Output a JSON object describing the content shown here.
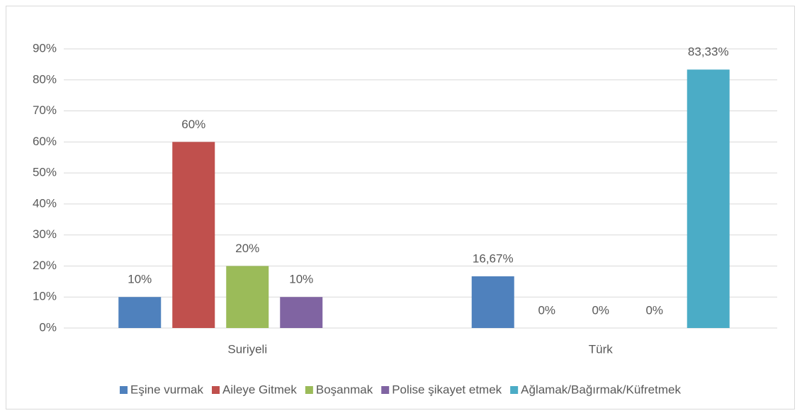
{
  "chart_data": {
    "type": "bar",
    "categories": [
      "Suriyeli",
      "Türk"
    ],
    "series": [
      {
        "name": "Eşine vurmak",
        "color": "#4f81bd",
        "values": [
          10,
          16.67
        ],
        "value_labels": [
          "10%",
          "16,67%"
        ]
      },
      {
        "name": "Aileye Gitmek",
        "color": "#c0504d",
        "values": [
          60,
          0
        ],
        "value_labels": [
          "60%",
          "0%"
        ]
      },
      {
        "name": "Boşanmak",
        "color": "#9bbb59",
        "values": [
          20,
          0
        ],
        "value_labels": [
          "20%",
          "0%"
        ]
      },
      {
        "name": "Polise şikayet etmek",
        "color": "#8064a2",
        "values": [
          10,
          0
        ],
        "value_labels": [
          "10%",
          "0%"
        ]
      },
      {
        "name": "Ağlamak/Bağırmak/Küfretmek",
        "color": "#4bacc6",
        "values": [
          null,
          83.33
        ],
        "value_labels": [
          null,
          "83,33%"
        ]
      }
    ],
    "ylim": [
      0,
      90
    ],
    "yticks": [
      {
        "value": 0,
        "label": "0%"
      },
      {
        "value": 10,
        "label": "10%"
      },
      {
        "value": 20,
        "label": "20%"
      },
      {
        "value": 30,
        "label": "30%"
      },
      {
        "value": 40,
        "label": "40%"
      },
      {
        "value": 50,
        "label": "50%"
      },
      {
        "value": 60,
        "label": "60%"
      },
      {
        "value": 70,
        "label": "70%"
      },
      {
        "value": 80,
        "label": "80%"
      },
      {
        "value": 90,
        "label": "90%"
      }
    ],
    "grid": true,
    "legend": "bottom"
  }
}
